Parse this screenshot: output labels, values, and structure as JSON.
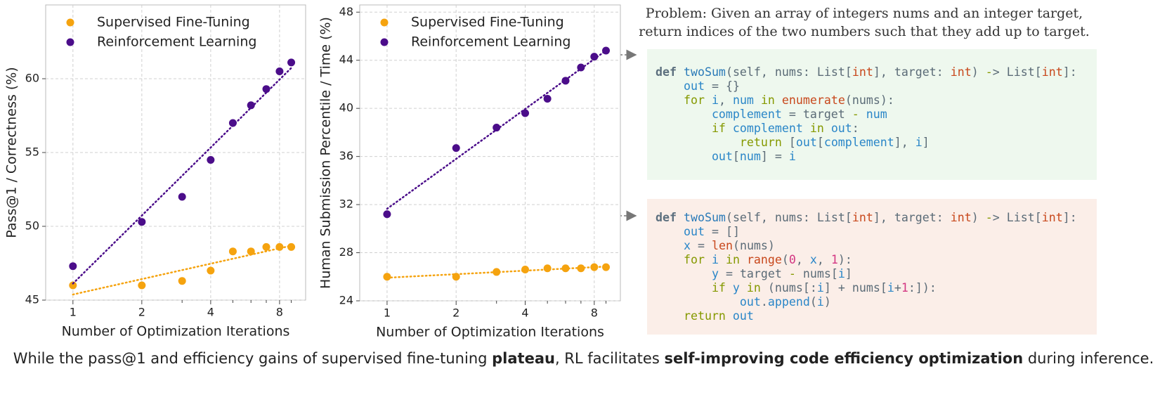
{
  "chart_data": [
    {
      "type": "scatter",
      "xlabel": "Number of Optimization Iterations",
      "ylabel": "Pass@1 / Correctness (%)",
      "x": [
        1,
        2,
        3,
        4,
        5,
        6,
        7,
        8,
        9
      ],
      "xscale": "log",
      "xlim": [
        0.76,
        10.4
      ],
      "xticks": [
        1,
        2,
        4,
        8
      ],
      "xminor_ticks": [
        3,
        5,
        6,
        7,
        9
      ],
      "ylim": [
        45,
        65
      ],
      "yticks": [
        45,
        50,
        55,
        60
      ],
      "grid": true,
      "trendline": true,
      "legend": "upper left",
      "series": [
        {
          "name": "Supervised Fine-Tuning",
          "color": "#f5a30f",
          "values": [
            46.0,
            46.0,
            46.3,
            47.0,
            48.3,
            48.3,
            48.6,
            48.6,
            48.6
          ]
        },
        {
          "name": "Reinforcement Learning",
          "color": "#4b0d8a",
          "values": [
            47.3,
            50.3,
            52.0,
            54.5,
            57.0,
            58.2,
            59.3,
            60.5,
            61.1
          ]
        }
      ]
    },
    {
      "type": "scatter",
      "xlabel": "Number of Optimization Iterations",
      "ylabel": "Human Submission Percentile / Time (%)",
      "x": [
        1,
        2,
        3,
        4,
        5,
        6,
        7,
        8,
        9
      ],
      "xscale": "log",
      "xlim": [
        0.76,
        10.4
      ],
      "xticks": [
        1,
        2,
        4,
        8
      ],
      "xminor_ticks": [
        3,
        5,
        6,
        7,
        9
      ],
      "ylim": [
        24,
        48.6
      ],
      "yticks": [
        24,
        28,
        32,
        36,
        40,
        44,
        48
      ],
      "grid": true,
      "trendline": true,
      "legend": "upper left",
      "series": [
        {
          "name": "Supervised Fine-Tuning",
          "color": "#f5a30f",
          "values": [
            26.0,
            26.0,
            26.4,
            26.6,
            26.7,
            26.7,
            26.7,
            26.8,
            26.8
          ]
        },
        {
          "name": "Reinforcement Learning",
          "color": "#4b0d8a",
          "values": [
            31.2,
            36.7,
            38.4,
            39.6,
            40.8,
            42.3,
            43.4,
            44.3,
            44.8
          ]
        }
      ]
    }
  ],
  "problem": [
    "Problem: Given an array of integers nums and an integer target,",
    "return indices of the two numbers such that they add up to target."
  ],
  "code_blocks": [
    [
      "def twoSum(self, nums: List[int], target: int) -> List[int]:",
      "    out = {}",
      "    for i, num in enumerate(nums):",
      "        complement = target - num",
      "        if complement in out:",
      "            return [out[complement], i]",
      "        out[num] = i"
    ],
    [
      "def twoSum(self, nums: List[int], target: int) -> List[int]:",
      "    out = []",
      "    x = len(nums)",
      "    for i in range(0, x, 1):",
      "        y = target - nums[i]",
      "        if y in (nums[:i] + nums[i+1:]):",
      "            out.append(i)",
      "    return out"
    ]
  ],
  "caption": [
    "While the pass@1 and efficiency gains of supervised fine-tuning ",
    "plateau",
    ", RL facilitates ",
    "self-improving code efficiency optimization",
    " during inference."
  ]
}
